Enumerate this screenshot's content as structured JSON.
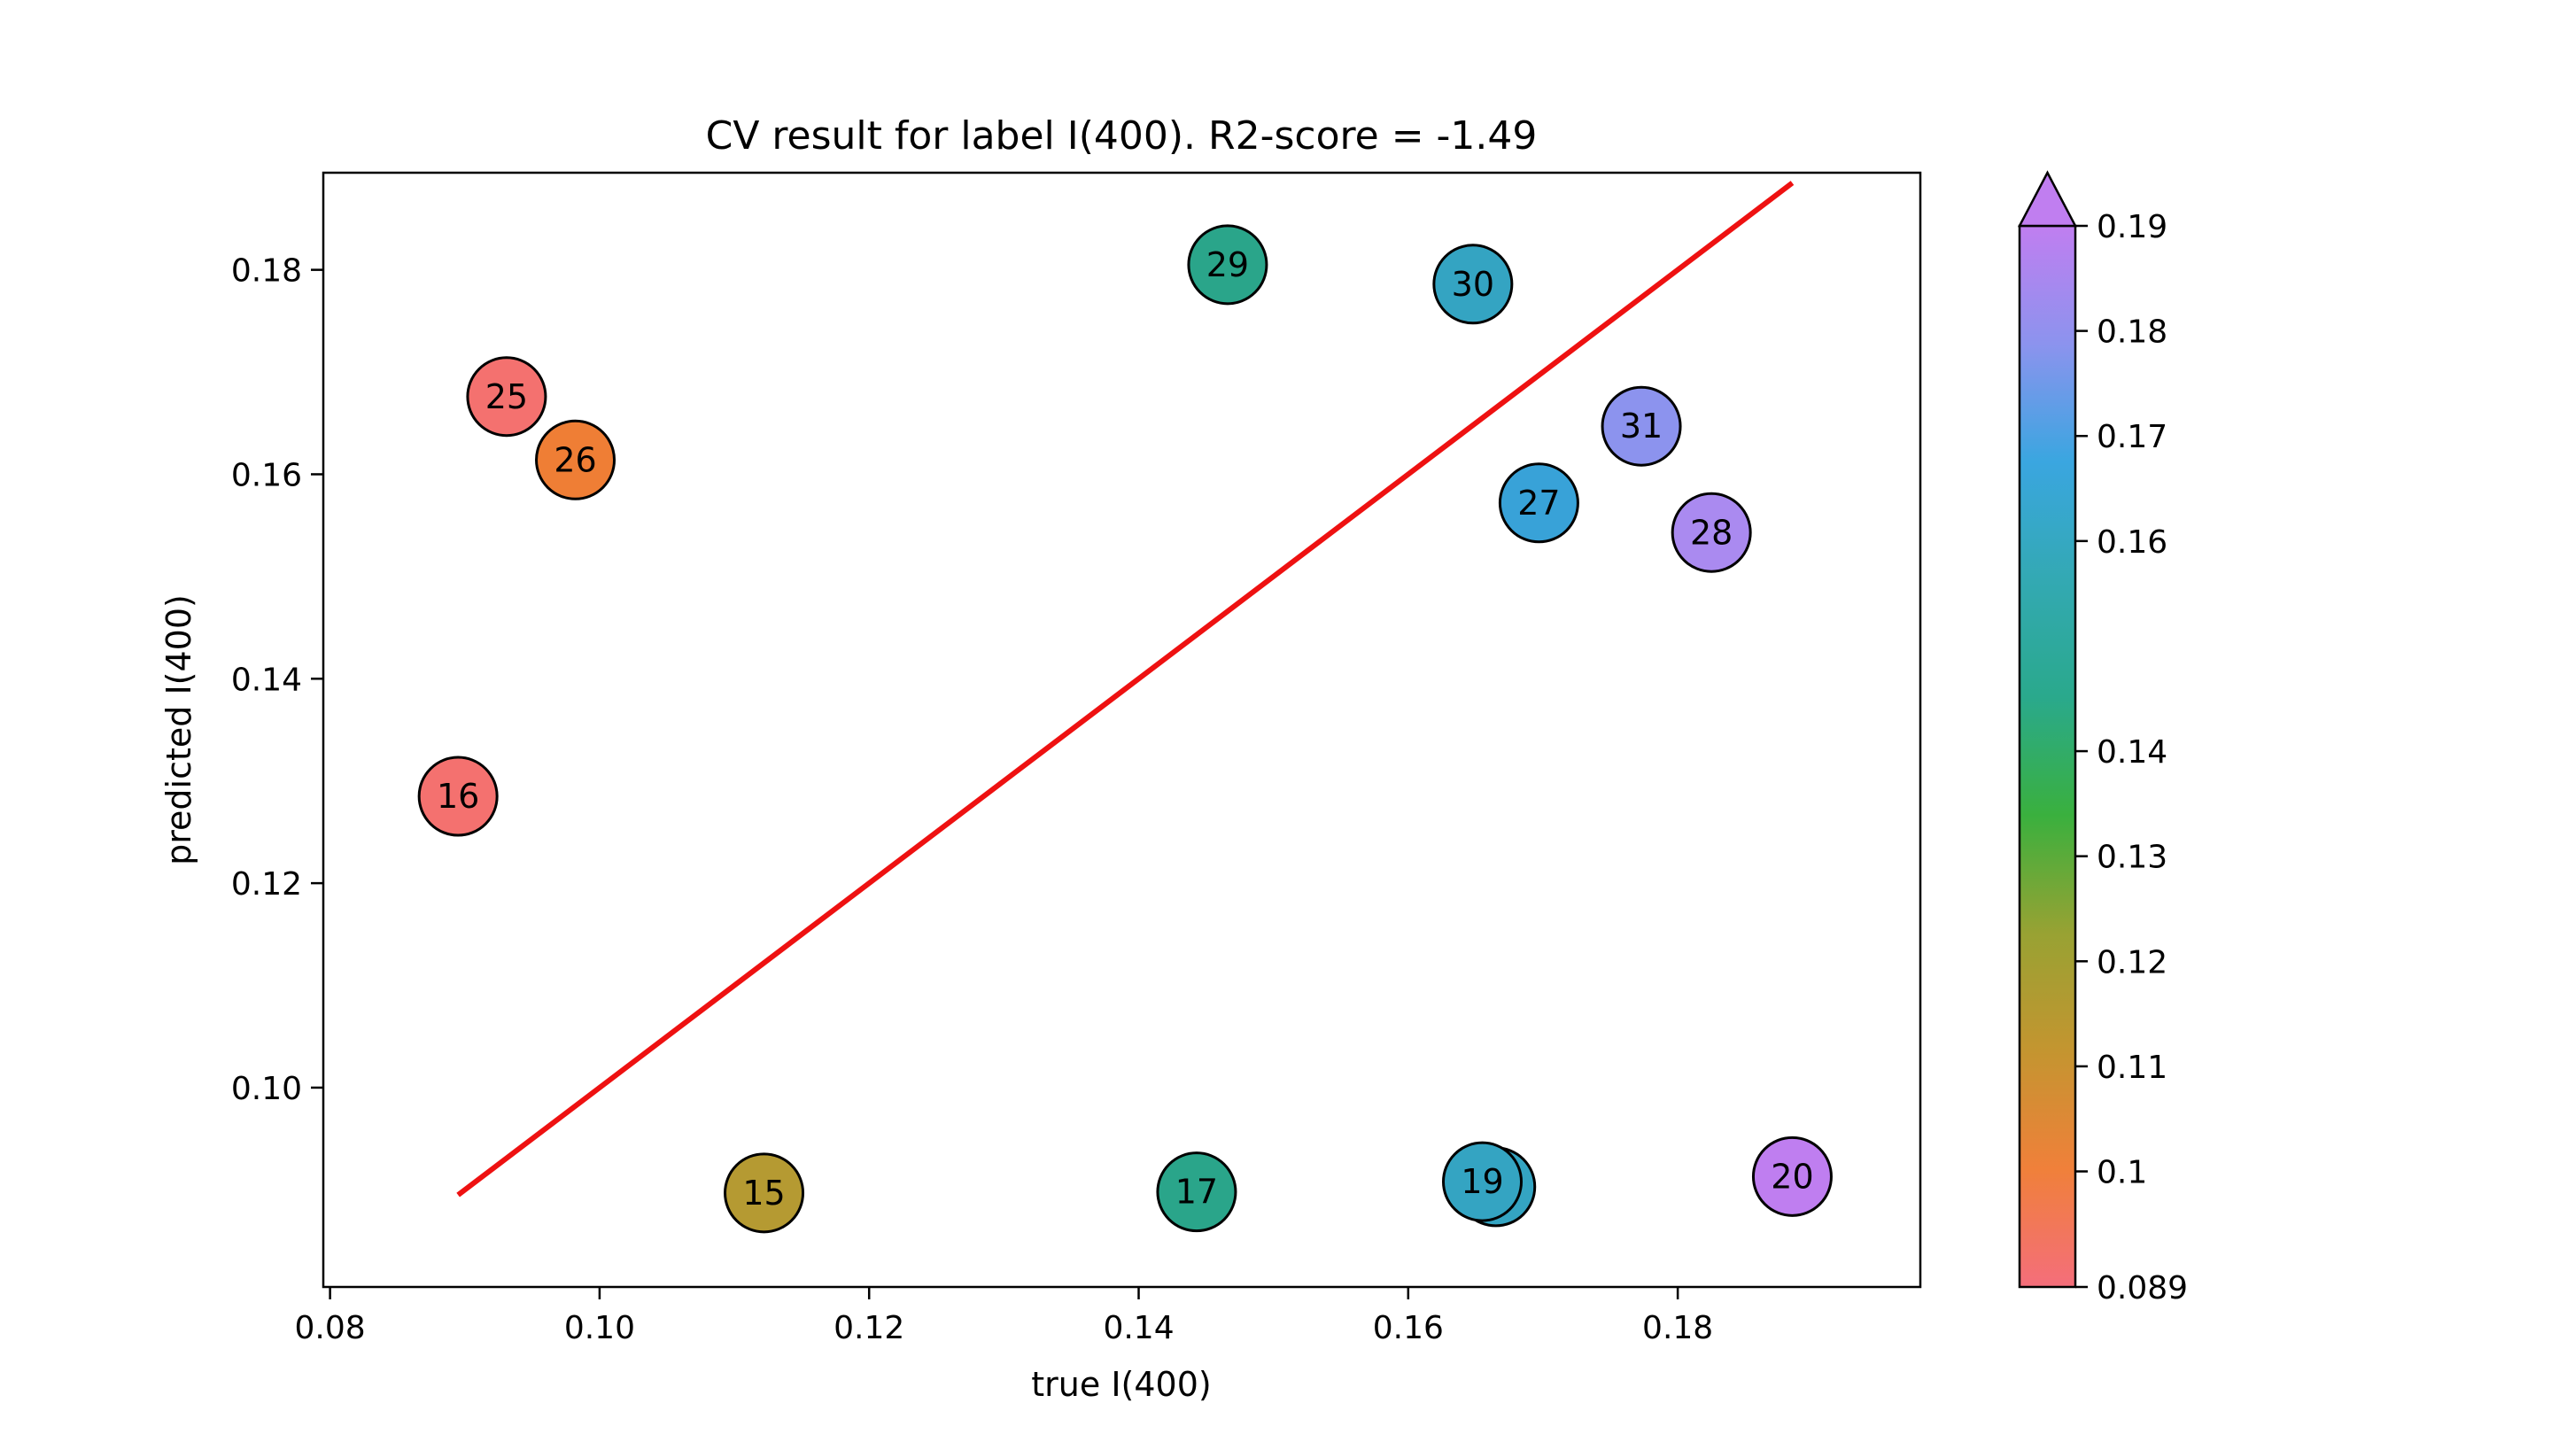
{
  "chart_data": {
    "type": "scatter",
    "title": "CV result for label I(400). R2-score = -1.49",
    "xlabel": "true I(400)",
    "ylabel": "predicted I(400)",
    "xlim": [
      0.0795,
      0.198
    ],
    "ylim": [
      0.0805,
      0.1895
    ],
    "xticks": [
      {
        "value": 0.08,
        "label": "0.08"
      },
      {
        "value": 0.1,
        "label": "0.10"
      },
      {
        "value": 0.12,
        "label": "0.12"
      },
      {
        "value": 0.14,
        "label": "0.14"
      },
      {
        "value": 0.16,
        "label": "0.16"
      },
      {
        "value": 0.18,
        "label": "0.18"
      }
    ],
    "yticks": [
      {
        "value": 0.1,
        "label": "0.10"
      },
      {
        "value": 0.12,
        "label": "0.12"
      },
      {
        "value": 0.14,
        "label": "0.14"
      },
      {
        "value": 0.16,
        "label": "0.16"
      },
      {
        "value": 0.18,
        "label": "0.18"
      }
    ],
    "grid": false,
    "reference_line": {
      "color": "#ee1111",
      "x": [
        0.0895,
        0.1885
      ],
      "y": [
        0.0895,
        0.1885
      ]
    },
    "points": [
      {
        "label": "29",
        "x": 0.1466,
        "y": 0.1805,
        "color": "#2aa58a"
      },
      {
        "label": "30",
        "x": 0.1648,
        "y": 0.1786,
        "color": "#34a4c2"
      },
      {
        "label": "25",
        "x": 0.0931,
        "y": 0.1676,
        "color": "#f4716f"
      },
      {
        "label": "26",
        "x": 0.0982,
        "y": 0.1614,
        "color": "#ef7e35"
      },
      {
        "label": "31",
        "x": 0.1773,
        "y": 0.1647,
        "color": "#8c93ee"
      },
      {
        "label": "27",
        "x": 0.1697,
        "y": 0.1572,
        "color": "#38a2d8"
      },
      {
        "label": "28",
        "x": 0.1825,
        "y": 0.1543,
        "color": "#aa8af0"
      },
      {
        "label": "16",
        "x": 0.0895,
        "y": 0.1285,
        "color": "#f4716f"
      },
      {
        "label": "15",
        "x": 0.1122,
        "y": 0.0897,
        "color": "#b59a32"
      },
      {
        "label": "17",
        "x": 0.1443,
        "y": 0.0898,
        "color": "#2aa58a"
      },
      {
        "label": "18",
        "x": 0.1665,
        "y": 0.0903,
        "color": "#34a4c2"
      },
      {
        "label": "19",
        "x": 0.1655,
        "y": 0.0908,
        "color": "#34a4c2"
      },
      {
        "label": "20",
        "x": 0.1885,
        "y": 0.0913,
        "color": "#bf7ef0"
      }
    ],
    "colorbar": {
      "min": 0.089,
      "max": 0.19,
      "extend": "max",
      "extend_color": "#c07ef0",
      "ticks": [
        {
          "value": 0.089,
          "label": "0.089"
        },
        {
          "value": 0.1,
          "label": "0.1"
        },
        {
          "value": 0.11,
          "label": "0.11"
        },
        {
          "value": 0.12,
          "label": "0.12"
        },
        {
          "value": 0.13,
          "label": "0.13"
        },
        {
          "value": 0.14,
          "label": "0.14"
        },
        {
          "value": 0.16,
          "label": "0.16"
        },
        {
          "value": 0.17,
          "label": "0.17"
        },
        {
          "value": 0.18,
          "label": "0.18"
        },
        {
          "value": 0.19,
          "label": "0.19"
        }
      ],
      "stops": [
        "#f46e7b",
        "#f0803a",
        "#c49530",
        "#98a233",
        "#3ab03e",
        "#2aa98c",
        "#33a9b3",
        "#3aa6e0",
        "#8c93ee",
        "#c07ef0"
      ]
    }
  }
}
